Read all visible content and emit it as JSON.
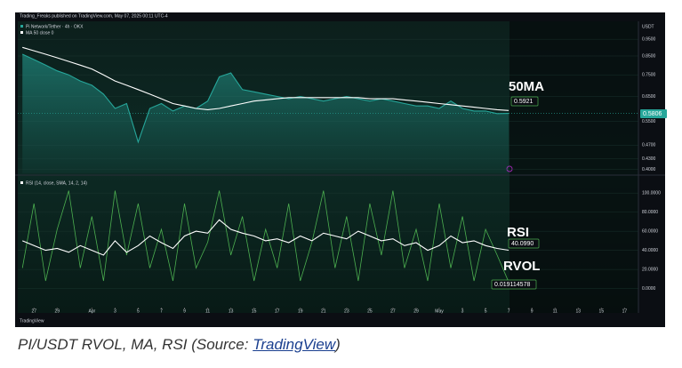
{
  "header": "Trading_Freaks published on TradingView.com, May 07, 2025 00:11 UTC-4",
  "chart_data": [
    {
      "type": "line",
      "log_scale": true,
      "y_label": "USDT",
      "xlim": [
        25.6,
        79.2
      ],
      "ylim": [
        0.39,
        1.07
      ],
      "yticks": [
        {
          "value": 0.95,
          "label": "0.9500"
        },
        {
          "value": 0.85,
          "label": "0.8500"
        },
        {
          "value": 0.75,
          "label": "0.7500"
        },
        {
          "value": 0.65,
          "label": "0.6500"
        },
        {
          "value": 0.55,
          "label": "0.5500"
        },
        {
          "value": 0.47,
          "label": "0.4700"
        },
        {
          "value": 0.43,
          "label": "0.4300"
        },
        {
          "value": 0.4,
          "label": "0.4000"
        }
      ],
      "x": [
        26,
        27,
        28,
        29,
        30,
        31,
        32,
        33,
        34,
        35,
        36,
        37,
        38,
        39,
        40,
        41,
        42,
        43,
        44,
        45,
        46,
        47,
        48,
        49,
        50,
        51,
        52,
        53,
        54,
        55,
        56,
        57,
        58,
        59,
        60,
        61,
        62,
        63,
        64,
        65,
        66,
        67,
        68
      ],
      "series": [
        {
          "name": "Pi Network/Tether · 4h · OKX",
          "color": "#26a69a",
          "area": true,
          "values": [
            0.86,
            0.83,
            0.8,
            0.77,
            0.75,
            0.72,
            0.7,
            0.66,
            0.6,
            0.62,
            0.48,
            0.6,
            0.62,
            0.59,
            0.61,
            0.6,
            0.63,
            0.74,
            0.76,
            0.68,
            0.67,
            0.66,
            0.65,
            0.64,
            0.65,
            0.64,
            0.63,
            0.64,
            0.65,
            0.64,
            0.63,
            0.64,
            0.63,
            0.62,
            0.61,
            0.61,
            0.6,
            0.63,
            0.6,
            0.59,
            0.59,
            0.58,
            0.5806
          ]
        },
        {
          "name": "MA 50 close 0",
          "color": "#ffffff",
          "values": [
            0.9,
            0.88,
            0.86,
            0.84,
            0.82,
            0.8,
            0.78,
            0.75,
            0.72,
            0.7,
            0.68,
            0.66,
            0.64,
            0.62,
            0.61,
            0.6,
            0.595,
            0.6,
            0.61,
            0.62,
            0.63,
            0.635,
            0.64,
            0.645,
            0.645,
            0.645,
            0.645,
            0.645,
            0.645,
            0.645,
            0.64,
            0.64,
            0.64,
            0.635,
            0.63,
            0.625,
            0.62,
            0.615,
            0.61,
            0.605,
            0.6,
            0.595,
            0.5921
          ]
        }
      ],
      "annotations": [
        "50MA",
        "0.5921",
        "0.5806"
      ]
    },
    {
      "type": "line",
      "xlim": [
        25.6,
        79.2
      ],
      "ylim": [
        -19,
        116
      ],
      "y2lim": [
        0,
        0.1
      ],
      "yticks": [
        {
          "value": 100,
          "label": "100.0000"
        },
        {
          "value": 80,
          "label": "80.0000"
        },
        {
          "value": 60,
          "label": "60.0000"
        },
        {
          "value": 40,
          "label": "40.0000"
        },
        {
          "value": 20,
          "label": "20.0000"
        },
        {
          "value": 0,
          "label": "0.0000"
        }
      ],
      "xticks": [
        {
          "value": 27,
          "label": "27"
        },
        {
          "value": 29,
          "label": "29"
        },
        {
          "value": 32,
          "label": "Apr"
        },
        {
          "value": 34,
          "label": "3"
        },
        {
          "value": 36,
          "label": "5"
        },
        {
          "value": 38,
          "label": "7"
        },
        {
          "value": 40,
          "label": "9"
        },
        {
          "value": 42,
          "label": "11"
        },
        {
          "value": 44,
          "label": "13"
        },
        {
          "value": 46,
          "label": "15"
        },
        {
          "value": 48,
          "label": "17"
        },
        {
          "value": 50,
          "label": "19"
        },
        {
          "value": 52,
          "label": "21"
        },
        {
          "value": 54,
          "label": "23"
        },
        {
          "value": 56,
          "label": "25"
        },
        {
          "value": 58,
          "label": "27"
        },
        {
          "value": 60,
          "label": "29"
        },
        {
          "value": 62,
          "label": "May"
        },
        {
          "value": 64,
          "label": "3"
        },
        {
          "value": 66,
          "label": "5"
        },
        {
          "value": 68,
          "label": "7"
        },
        {
          "value": 70,
          "label": "9"
        },
        {
          "value": 72,
          "label": "11"
        },
        {
          "value": 74,
          "label": "13"
        },
        {
          "value": 76,
          "label": "15"
        },
        {
          "value": 78,
          "label": "17"
        }
      ],
      "x": [
        26,
        27,
        28,
        29,
        30,
        31,
        32,
        33,
        34,
        35,
        36,
        37,
        38,
        39,
        40,
        41,
        42,
        43,
        44,
        45,
        46,
        47,
        48,
        49,
        50,
        51,
        52,
        53,
        54,
        55,
        56,
        57,
        58,
        59,
        60,
        61,
        62,
        63,
        64,
        65,
        66,
        67,
        68
      ],
      "series": [
        {
          "name": "RVOL",
          "color": "#4caf50",
          "axis": "y2",
          "values": [
            0.03,
            0.08,
            0.02,
            0.06,
            0.09,
            0.03,
            0.07,
            0.02,
            0.09,
            0.04,
            0.08,
            0.03,
            0.06,
            0.02,
            0.08,
            0.03,
            0.05,
            0.09,
            0.04,
            0.07,
            0.02,
            0.06,
            0.03,
            0.08,
            0.02,
            0.05,
            0.09,
            0.03,
            0.07,
            0.02,
            0.08,
            0.04,
            0.09,
            0.03,
            0.06,
            0.02,
            0.08,
            0.03,
            0.07,
            0.02,
            0.06,
            0.04,
            0.019114578
          ]
        },
        {
          "name": "RSI (14, close, SMA, 14, 2, 14)",
          "color": "#ffffff",
          "values": [
            50,
            45,
            40,
            42,
            38,
            45,
            40,
            35,
            50,
            38,
            45,
            55,
            48,
            42,
            55,
            60,
            58,
            72,
            62,
            58,
            55,
            50,
            52,
            48,
            55,
            50,
            58,
            55,
            52,
            60,
            55,
            50,
            52,
            45,
            48,
            40,
            45,
            55,
            48,
            50,
            45,
            42,
            40.099
          ]
        }
      ],
      "annotations": [
        "RSI",
        "40.0990",
        "0.019114578"
      ]
    }
  ],
  "watermark": "TradingView",
  "caption": {
    "prefix": "PI/USDT RVOL, MA, RSI (Source: ",
    "link": "TradingView",
    "suffix": ")"
  }
}
